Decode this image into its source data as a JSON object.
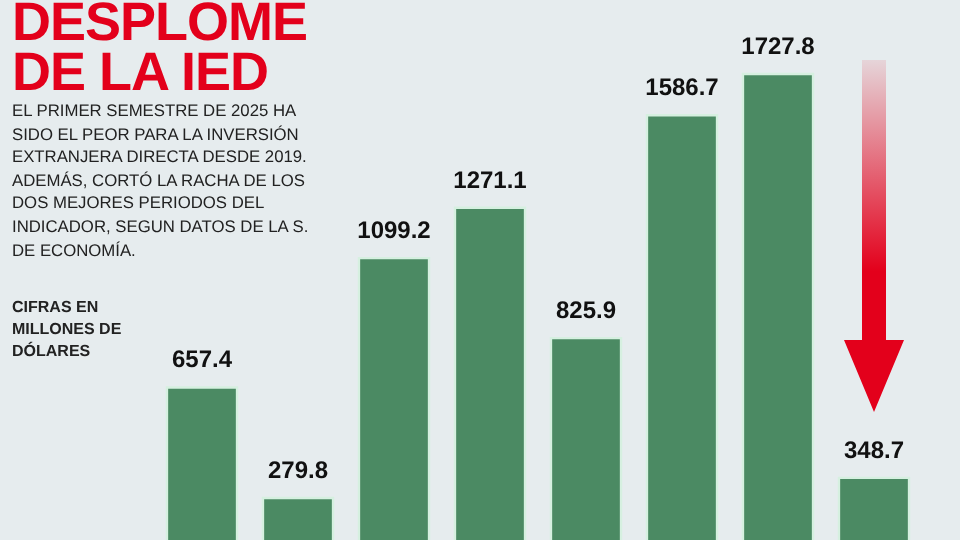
{
  "chart_data": {
    "type": "bar",
    "title": "DESPLOME DE LA IED",
    "subtitle": "EL PRIMER SEMESTRE DE 2025 HA SIDO EL PEOR PARA LA INVERSIÓN EXTRANJERA DIRECTA DESDE 2019. ADEMÁS, CORTÓ LA RACHA DE LOS DOS MEJORES PERIODOS DEL INDICADOR, SEGUN DATOS DE LA S. DE ECONOMÍA.",
    "annotations": [
      "CIFRAS EN MILLONES DE DÓLARES"
    ],
    "categories": [
      null,
      null,
      null,
      null,
      null,
      null,
      null,
      null
    ],
    "values": [
      657.4,
      279.8,
      1099.2,
      1271.1,
      825.9,
      1586.7,
      1727.8,
      348.7
    ],
    "color": "#4b8a63",
    "data_labels": true
  }
}
